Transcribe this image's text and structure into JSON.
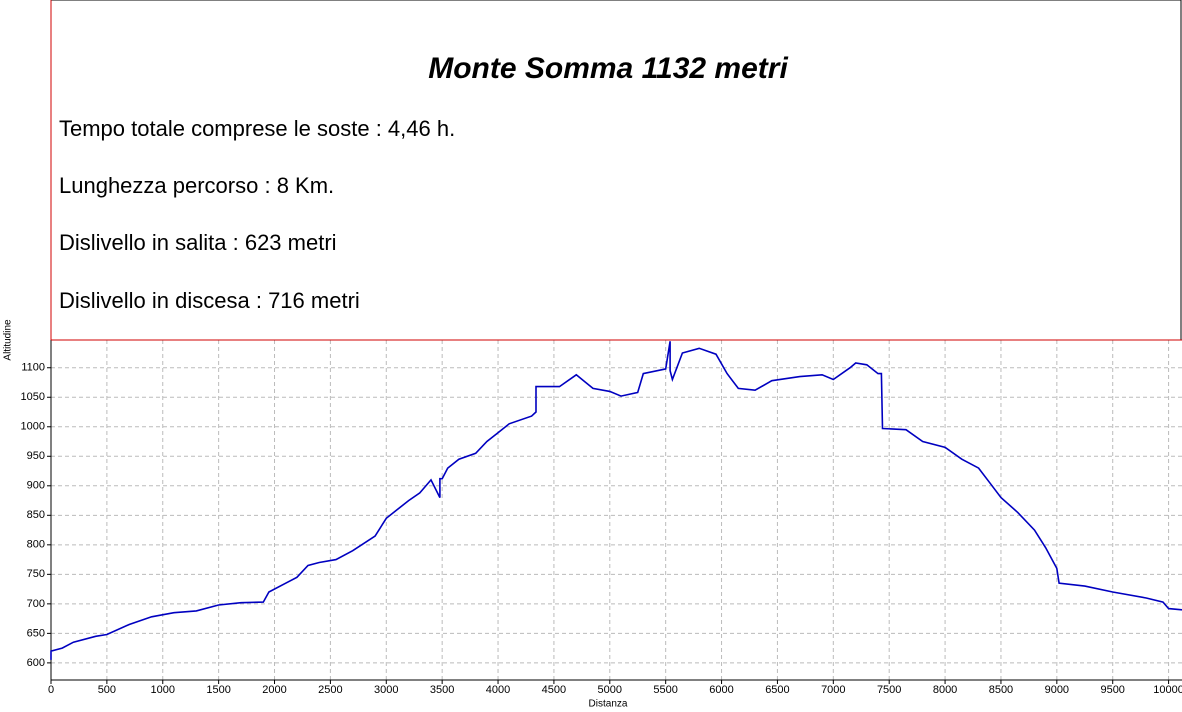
{
  "chart_data": {
    "type": "line",
    "title": "Monte Somma 1132 metri",
    "annotations": [
      "Tempo totale comprese le soste : 4,46 h.",
      "Lunghezza percorso : 8 Km.",
      "Dislivello in salita : 623 metri",
      "Dislivello in discesa : 716 metri"
    ],
    "x_label": "Distanza",
    "y_label": "Altitudine",
    "x": [
      0,
      0,
      100,
      200,
      400,
      500,
      700,
      900,
      1100,
      1300,
      1500,
      1700,
      1900,
      1950,
      2100,
      2200,
      2300,
      2400,
      2550,
      2700,
      2900,
      3000,
      3100,
      3200,
      3300,
      3400,
      3480,
      3480,
      3500,
      3550,
      3650,
      3800,
      3900,
      4000,
      4100,
      4300,
      4340,
      4340,
      4550,
      4700,
      4850,
      5000,
      5100,
      5250,
      5300,
      5500,
      5540,
      5540,
      5560,
      5650,
      5800,
      5950,
      6050,
      6150,
      6300,
      6450,
      6700,
      6900,
      7000,
      7150,
      7200,
      7300,
      7400,
      7430,
      7440,
      7650,
      7800,
      8000,
      8150,
      8300,
      8400,
      8500,
      8650,
      8800,
      8900,
      9000,
      9020,
      9250,
      9500,
      9800,
      9950,
      10000,
      10120
    ],
    "series": [
      {
        "name": "Altitudine",
        "color": "#0000c0",
        "values": [
          605,
          620,
          625,
          635,
          645,
          648,
          665,
          678,
          685,
          688,
          698,
          702,
          703,
          720,
          735,
          745,
          765,
          770,
          775,
          790,
          815,
          845,
          860,
          875,
          888,
          910,
          880,
          912,
          912,
          930,
          945,
          955,
          975,
          990,
          1005,
          1018,
          1025,
          1068,
          1068,
          1088,
          1065,
          1060,
          1052,
          1058,
          1090,
          1098,
          1145,
          1095,
          1080,
          1125,
          1133,
          1123,
          1090,
          1065,
          1062,
          1078,
          1085,
          1088,
          1080,
          1100,
          1108,
          1105,
          1090,
          1090,
          997,
          995,
          975,
          965,
          945,
          930,
          905,
          880,
          855,
          825,
          795,
          760,
          735,
          730,
          720,
          710,
          703,
          692,
          690
        ]
      }
    ],
    "xlim": [
      0,
      10120
    ],
    "ylim": [
      571,
      1147
    ],
    "xticks": [
      0,
      500,
      1000,
      1500,
      2000,
      2500,
      3000,
      3500,
      4000,
      4500,
      5000,
      5500,
      6000,
      6500,
      7000,
      7500,
      8000,
      8500,
      9000,
      9500,
      10000
    ],
    "yticks": [
      600,
      650,
      700,
      750,
      800,
      850,
      900,
      950,
      1000,
      1050,
      1100
    ],
    "grid": true
  }
}
